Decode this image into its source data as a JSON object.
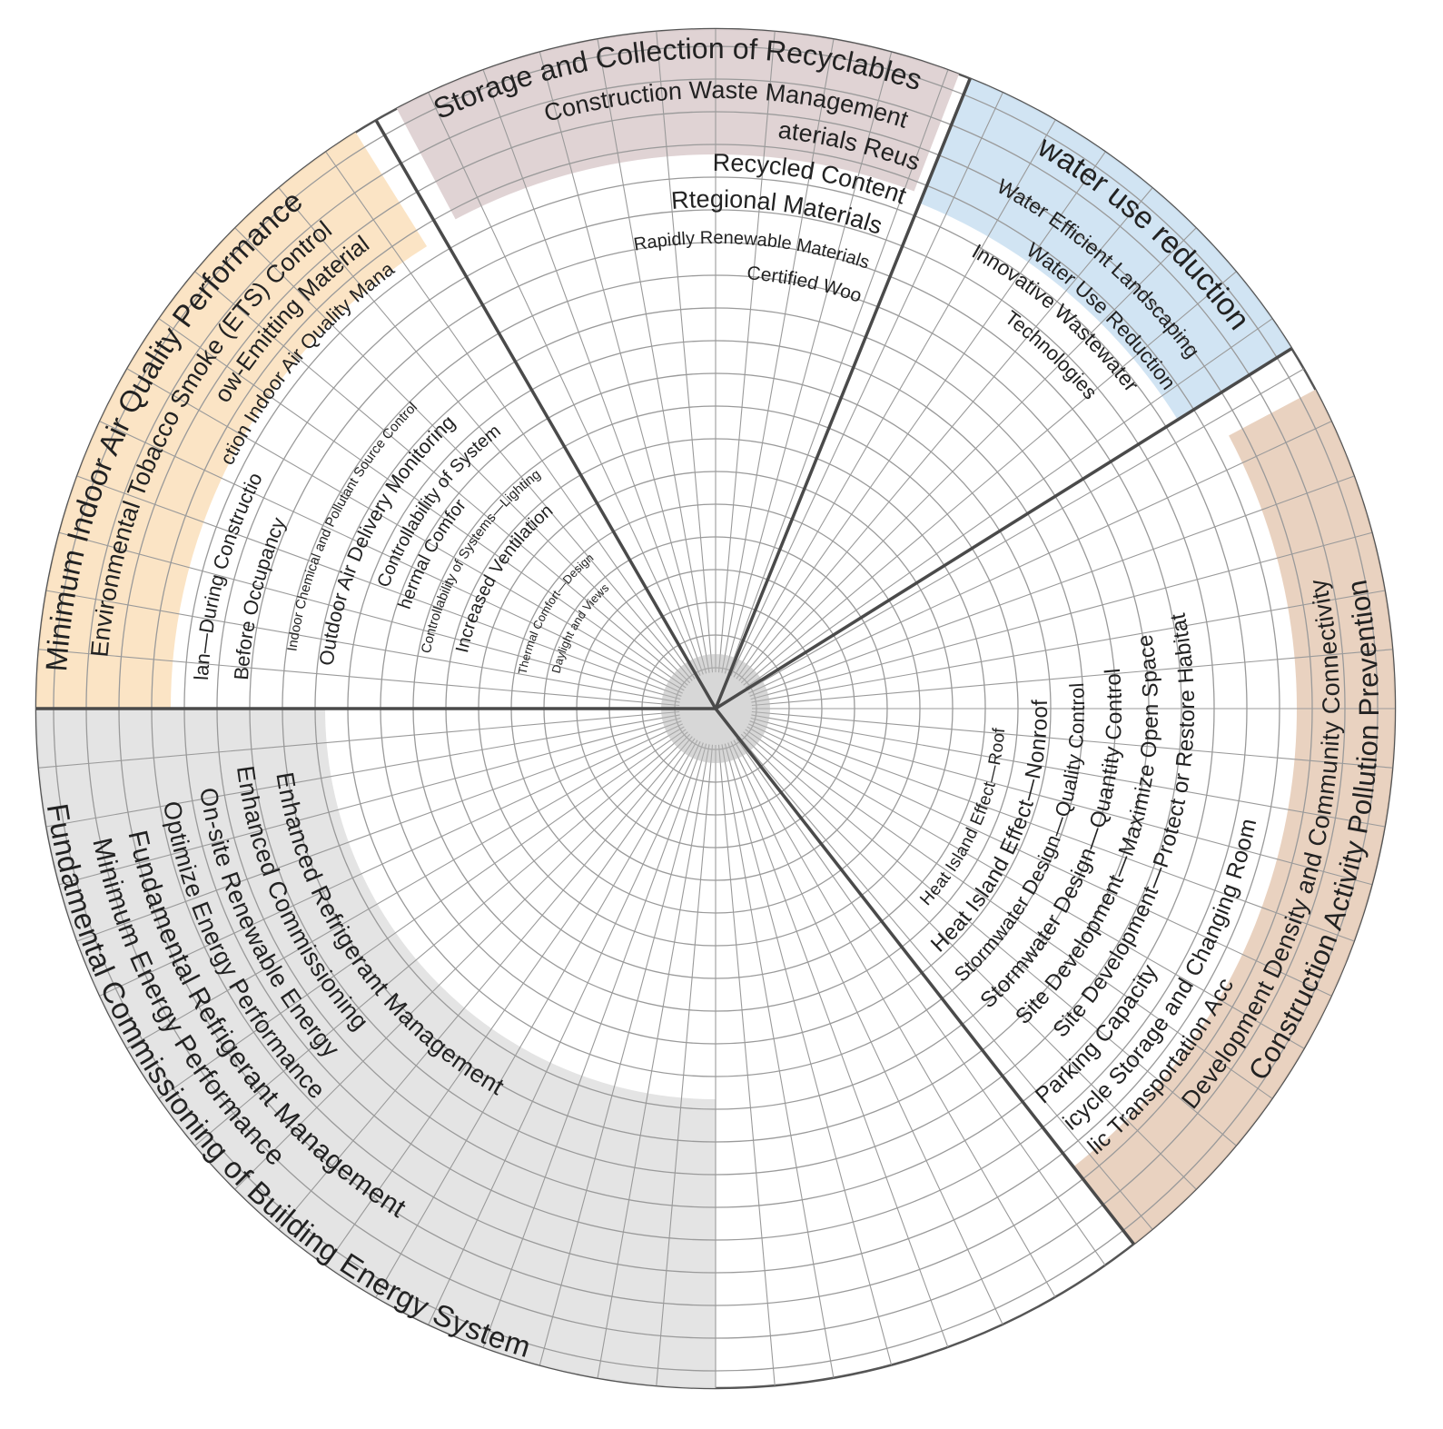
{
  "colors": {
    "indoor": "#fbe3c2",
    "materials": "#ded1d2",
    "water": "#cfe3f2",
    "sites": "#e8d0bd",
    "energy": "#e3e3e3",
    "grid": "#9a9a9a",
    "divider": "#4a4a4a",
    "hub": "#b7b7b7"
  },
  "sectors": [
    {
      "key": "indoor",
      "items": [
        "Minimum Indoor Air Quality Performance",
        "Environmental Tobacco Smoke (ETS) Control",
        "Low-Emitting Materials",
        "Construction Indoor Air Quality Management",
        "Plan—During Construction",
        "Before Occupancy",
        "Indoor Chemical and Pollutant Source Control",
        "Outdoor Air Delivery Monitoring",
        "- Controllability of Systems",
        "Thermal Comfort",
        "Controllability of Systems—Lighting",
        "Increased Ventilation",
        "Thermal Comfort—Design",
        "Daylight and Views"
      ]
    },
    {
      "key": "materials",
      "items": [
        "Storage and Collection of Recyclables",
        "Construction Waste Management",
        "Materials Reuse",
        "Recycled Content",
        "Rtegional Materials",
        "Rapidly Renewable Materials",
        "Certified Wood"
      ]
    },
    {
      "key": "water",
      "items": [
        "water use reduction",
        "Water Efficient Landscaping",
        "Water Use Reduction",
        "Innovative Wastewater",
        "Technologies"
      ]
    },
    {
      "key": "sites",
      "items": [
        "Construction Activity Pollution Prevention",
        "Development Density and Community Connectivity",
        "Public Transportation Access",
        "Bicycle Storage and Changing Rooms",
        "Parking Capacity",
        "Site Development—Protect or Restore Habitat",
        "Site Development—Maximize Open Space",
        "Stormwater Design—Quantity Control",
        "Stormwater Design—Quality Control",
        "Heat Island Effect—Nonroof",
        "Heat Island Effect—Roof"
      ]
    },
    {
      "key": "energy",
      "items": [
        "Fundamental Commissioning of Building Energy System",
        "Minimum Energy Performance",
        "Fundamental Refrigerant Management",
        "Optimize Energy Performance",
        "On-site Renewable Energy",
        "Enhanced Commissioning",
        "Enhanced Refrigerant Management"
      ]
    }
  ]
}
